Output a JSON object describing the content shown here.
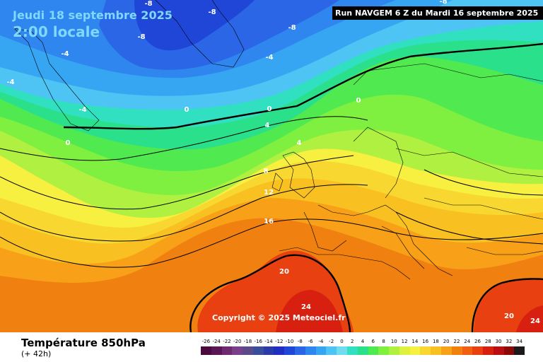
{
  "header": {
    "date": "Jeudi 18 septembre 2025",
    "time": "2:00 locale",
    "run": "Run NAVGEM 6 Z du Mardi 16 septembre 2025"
  },
  "copyright": "Copyright © 2025 Meteociel.fr",
  "footer": {
    "variable": "Température 850hPa",
    "lead": "(+ 42h)"
  },
  "map_labels": {
    "l1": "-8",
    "l2": "-4",
    "l3": "-8",
    "l4": "-8",
    "l5": "-4",
    "l6": "-4",
    "l7": "-4",
    "l8": "-4",
    "l9": "0",
    "l10": "0",
    "l11": "0",
    "l12": "0",
    "l13": "4",
    "l14": "4",
    "l15": "8",
    "l16": "12",
    "l17": "16",
    "l18": "20",
    "l19": "24",
    "l20": "20",
    "l21": "24",
    "l22": "-8",
    "l23": "-8"
  },
  "legend": {
    "labels": [
      "-26",
      "-24",
      "-22",
      "-20",
      "-18",
      "-16",
      "-14",
      "-12",
      "-10",
      "-8",
      "-6",
      "-4",
      "-2",
      "0",
      "2",
      "4",
      "6",
      "8",
      "10",
      "12",
      "14",
      "16",
      "18",
      "20",
      "22",
      "24",
      "26",
      "28",
      "30",
      "32",
      "34"
    ],
    "colors": [
      "#4a0a3c",
      "#5c1553",
      "#6d2a6e",
      "#7a3f88",
      "#5a4a8c",
      "#3a4d98",
      "#2a3aa8",
      "#1f2fc0",
      "#2046d8",
      "#2a66e6",
      "#2f86ee",
      "#36a6f2",
      "#4ec4f4",
      "#6fdcf0",
      "#30e0c0",
      "#2ae08a",
      "#50ea50",
      "#80f040",
      "#b0f040",
      "#e0f040",
      "#f8f040",
      "#f8d830",
      "#f8c020",
      "#f8a018",
      "#f08010",
      "#f06010",
      "#e84010",
      "#d82010",
      "#b81010",
      "#8a0a0a",
      "#1a1a1a"
    ]
  },
  "colors": {
    "title_text": "#7fd8ff",
    "run_box": "#000000",
    "contour": "#000000"
  }
}
